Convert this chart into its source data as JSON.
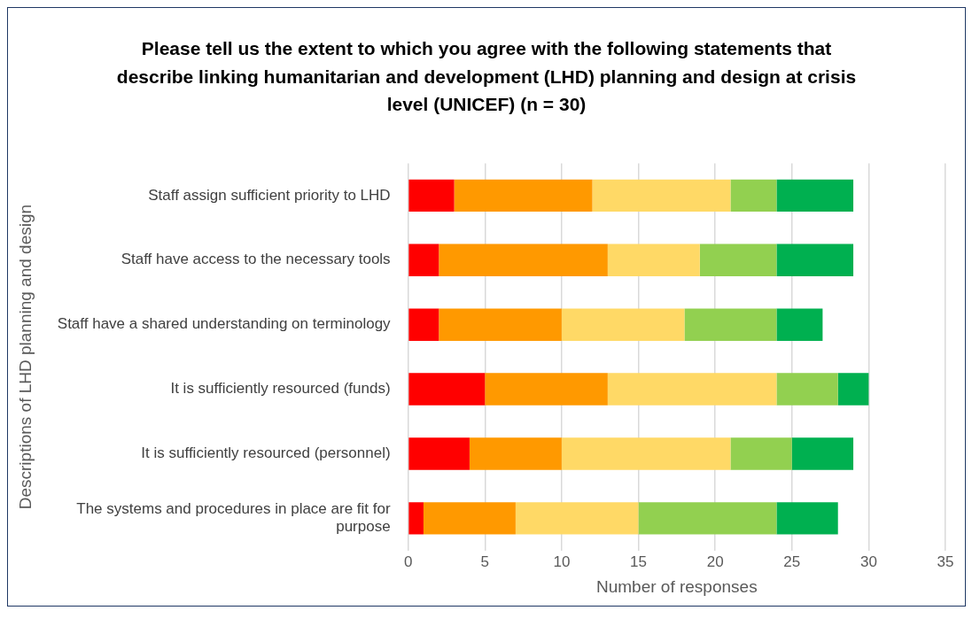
{
  "chart_data": {
    "type": "bar",
    "orientation": "horizontal",
    "stacked": true,
    "title": "Please tell us the extent to which you agree with the following statements that describe linking humanitarian and development (LHD) planning and design at crisis level (UNICEF) (n = 30)",
    "xlabel": "Number of responses",
    "ylabel": "Descriptions of LHD planning and design",
    "categories": [
      "Staff assign sufficient priority to LHD",
      "Staff have access to the necessary tools",
      "Staff have a shared understanding on terminology",
      "It is sufficiently resourced (funds)",
      "It is sufficiently resourced (personnel)",
      "The systems and procedures in place are fit for purpose"
    ],
    "series": [
      {
        "color": "#ff0000",
        "values": [
          3,
          2,
          2,
          5,
          4,
          1
        ]
      },
      {
        "color": "#ff9900",
        "values": [
          9,
          11,
          8,
          8,
          6,
          6
        ]
      },
      {
        "color": "#ffd966",
        "values": [
          9,
          6,
          8,
          11,
          11,
          8
        ]
      },
      {
        "color": "#92d050",
        "values": [
          3,
          5,
          6,
          4,
          4,
          9
        ]
      },
      {
        "color": "#00b050",
        "values": [
          5,
          5,
          3,
          2,
          4,
          4
        ]
      }
    ],
    "xlim": [
      0,
      35
    ],
    "xticks": [
      0,
      5,
      10,
      15,
      20,
      25,
      30,
      35
    ],
    "grid": "x",
    "legend": false
  }
}
